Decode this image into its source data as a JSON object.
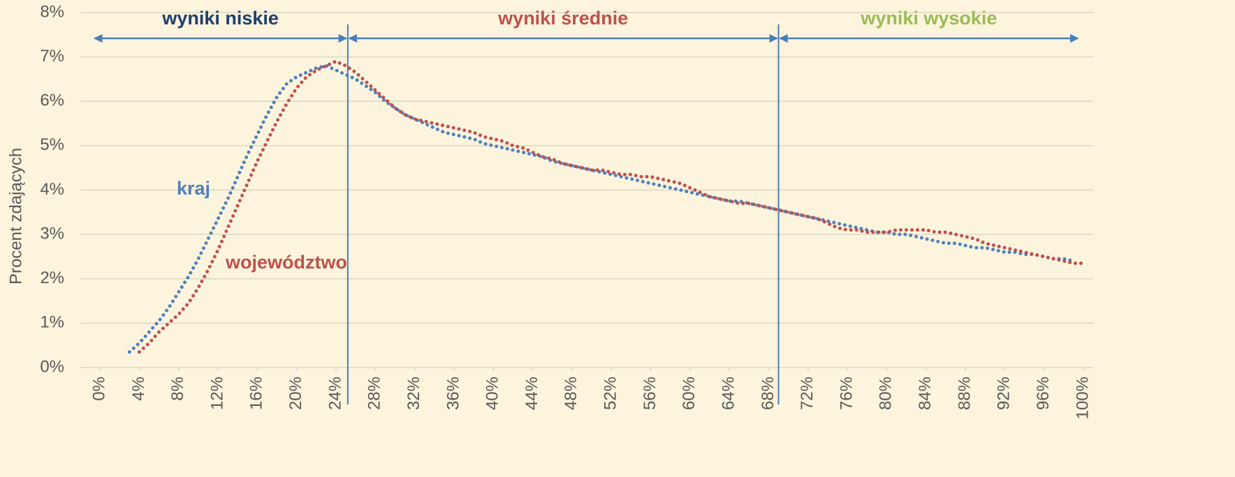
{
  "chart_data": {
    "type": "line",
    "ylabel": "Procent zdających",
    "x": [
      3,
      4,
      5,
      6,
      7,
      8,
      9,
      10,
      11,
      12,
      13,
      14,
      15,
      16,
      17,
      18,
      19,
      20,
      21,
      22,
      23,
      24,
      25,
      26,
      27,
      28,
      29,
      30,
      31,
      32,
      33,
      34,
      35,
      36,
      37,
      38,
      39,
      40,
      41,
      42,
      43,
      44,
      45,
      46,
      47,
      48,
      49,
      50,
      51,
      52,
      53,
      54,
      55,
      56,
      57,
      58,
      59,
      60,
      61,
      62,
      63,
      64,
      65,
      66,
      67,
      68,
      69,
      70,
      71,
      72,
      73,
      74,
      75,
      76,
      77,
      78,
      79,
      80,
      81,
      82,
      83,
      84,
      85,
      86,
      87,
      88,
      89,
      90,
      91,
      92,
      93,
      94,
      95,
      96,
      97,
      98,
      99,
      100
    ],
    "series": [
      {
        "name": "kraj",
        "color": "#4f81bd",
        "values": [
          0.35,
          0.55,
          0.8,
          1.05,
          1.35,
          1.7,
          2.05,
          2.45,
          2.9,
          3.35,
          3.8,
          4.3,
          4.8,
          5.25,
          5.7,
          6.1,
          6.4,
          6.55,
          6.65,
          6.75,
          6.8,
          6.7,
          6.6,
          6.5,
          6.35,
          6.2,
          6.0,
          5.85,
          5.7,
          5.6,
          5.5,
          5.4,
          5.3,
          5.25,
          5.2,
          5.15,
          5.05,
          5.0,
          4.95,
          4.9,
          4.85,
          4.8,
          4.75,
          4.65,
          4.6,
          4.55,
          4.5,
          4.45,
          4.4,
          4.35,
          4.3,
          4.25,
          4.2,
          4.15,
          4.1,
          4.05,
          4.0,
          3.95,
          3.9,
          3.85,
          3.8,
          3.75,
          3.75,
          3.7,
          3.65,
          3.6,
          3.55,
          3.5,
          3.45,
          3.4,
          3.35,
          3.3,
          3.25,
          3.2,
          3.15,
          3.1,
          3.05,
          3.05,
          3.0,
          3.0,
          2.95,
          2.9,
          2.85,
          2.8,
          2.8,
          2.75,
          2.7,
          2.7,
          2.65,
          2.6,
          2.6,
          2.55,
          2.55,
          2.5,
          2.45,
          2.45,
          2.4,
          null
        ]
      },
      {
        "name": "województwo",
        "color": "#c0504d",
        "values": [
          null,
          0.35,
          0.55,
          0.8,
          1.0,
          1.2,
          1.45,
          1.8,
          2.2,
          2.65,
          3.15,
          3.65,
          4.15,
          4.65,
          5.1,
          5.55,
          5.95,
          6.3,
          6.55,
          6.7,
          6.8,
          6.9,
          6.8,
          6.65,
          6.45,
          6.25,
          6.05,
          5.85,
          5.7,
          5.6,
          5.55,
          5.5,
          5.45,
          5.4,
          5.35,
          5.3,
          5.2,
          5.15,
          5.1,
          5.0,
          4.95,
          4.85,
          4.75,
          4.7,
          4.6,
          4.55,
          4.5,
          4.45,
          4.45,
          4.4,
          4.35,
          4.35,
          4.3,
          4.3,
          4.25,
          4.2,
          4.15,
          4.05,
          3.95,
          3.85,
          3.8,
          3.75,
          3.7,
          3.7,
          3.65,
          3.6,
          3.55,
          3.5,
          3.45,
          3.4,
          3.35,
          3.25,
          3.15,
          3.1,
          3.1,
          3.05,
          3.05,
          3.05,
          3.1,
          3.1,
          3.1,
          3.1,
          3.05,
          3.05,
          3.0,
          2.95,
          2.9,
          2.8,
          2.75,
          2.7,
          2.65,
          2.6,
          2.55,
          2.5,
          2.45,
          2.4,
          2.35,
          2.35
        ]
      }
    ],
    "regions": [
      {
        "label": "wyniki niskie",
        "color": "#1f3f6e",
        "from": -0.7,
        "to": 25.2
      },
      {
        "label": "wyniki średnie",
        "color": "#c0504d",
        "from": 25.2,
        "to": 69
      },
      {
        "label": "wyniki wysokie",
        "color": "#9bbb59",
        "from": 69,
        "to": 99.6
      }
    ],
    "xlim": [
      -2,
      101
    ],
    "xticks": [
      {
        "value": 0,
        "label": "0%"
      },
      {
        "value": 4,
        "label": "4%"
      },
      {
        "value": 8,
        "label": "8%"
      },
      {
        "value": 12,
        "label": "12%"
      },
      {
        "value": 16,
        "label": "16%"
      },
      {
        "value": 20,
        "label": "20%"
      },
      {
        "value": 24,
        "label": "24%"
      },
      {
        "value": 28,
        "label": "28%"
      },
      {
        "value": 32,
        "label": "32%"
      },
      {
        "value": 36,
        "label": "36%"
      },
      {
        "value": 40,
        "label": "40%"
      },
      {
        "value": 44,
        "label": "44%"
      },
      {
        "value": 48,
        "label": "48%"
      },
      {
        "value": 52,
        "label": "52%"
      },
      {
        "value": 56,
        "label": "56%"
      },
      {
        "value": 60,
        "label": "60%"
      },
      {
        "value": 64,
        "label": "64%"
      },
      {
        "value": 68,
        "label": "68%"
      },
      {
        "value": 72,
        "label": "72%"
      },
      {
        "value": 76,
        "label": "76%"
      },
      {
        "value": 80,
        "label": "80%"
      },
      {
        "value": 84,
        "label": "84%"
      },
      {
        "value": 88,
        "label": "88%"
      },
      {
        "value": 92,
        "label": "92%"
      },
      {
        "value": 96,
        "label": "96%"
      },
      {
        "value": 100,
        "label": "100%"
      }
    ],
    "ylim": [
      0,
      8
    ],
    "yticks": [
      {
        "value": 0,
        "label": "0%"
      },
      {
        "value": 1,
        "label": "1%"
      },
      {
        "value": 2,
        "label": "2%"
      },
      {
        "value": 3,
        "label": "3%"
      },
      {
        "value": 4,
        "label": "4%"
      },
      {
        "value": 5,
        "label": "5%"
      },
      {
        "value": 6,
        "label": "6%"
      },
      {
        "value": 7,
        "label": "7%"
      },
      {
        "value": 8,
        "label": "8%"
      }
    ],
    "grid": true
  }
}
